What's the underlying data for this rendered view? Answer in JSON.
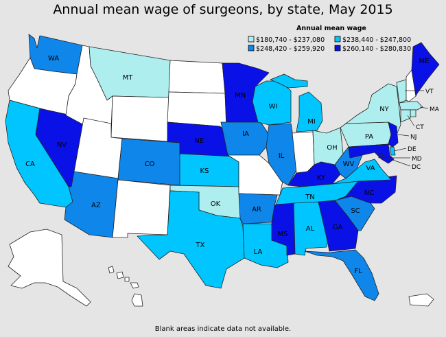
{
  "title": "Annual mean wage of surgeons, by state, May 2015",
  "footnote": "Blank areas indicate data not available.",
  "legend": {
    "title": "Annual mean wage",
    "ranges": [
      {
        "label": "$180,740 - $237,080",
        "color": "#aeeeee"
      },
      {
        "label": "$238,440 - $247,800",
        "color": "#00c5ff"
      },
      {
        "label": "$248,420 - $259,920",
        "color": "#0f86ea"
      },
      {
        "label": "$260,140 - $280,830",
        "color": "#0a11e6"
      }
    ]
  },
  "colors": {
    "nodata": "#ffffff",
    "background": "#e5e5e5"
  },
  "states": {
    "WA": {
      "label": "WA",
      "bin": 2
    },
    "OR": {
      "label": "",
      "bin": -1
    },
    "CA": {
      "label": "CA",
      "bin": 1
    },
    "NV": {
      "label": "NV",
      "bin": 3
    },
    "ID": {
      "label": "",
      "bin": -1
    },
    "MT": {
      "label": "MT",
      "bin": 0
    },
    "WY": {
      "label": "",
      "bin": -1
    },
    "UT": {
      "label": "",
      "bin": -1
    },
    "AZ": {
      "label": "AZ",
      "bin": 2
    },
    "CO": {
      "label": "CO",
      "bin": 2
    },
    "NM": {
      "label": "",
      "bin": -1
    },
    "ND": {
      "label": "",
      "bin": -1
    },
    "SD": {
      "label": "",
      "bin": -1
    },
    "NE": {
      "label": "NE",
      "bin": 3
    },
    "KS": {
      "label": "KS",
      "bin": 1
    },
    "OK": {
      "label": "OK",
      "bin": 0
    },
    "TX": {
      "label": "TX",
      "bin": 1
    },
    "MN": {
      "label": "MN",
      "bin": 3
    },
    "IA": {
      "label": "IA",
      "bin": 2
    },
    "MO": {
      "label": "",
      "bin": -1
    },
    "AR": {
      "label": "AR",
      "bin": 2
    },
    "LA": {
      "label": "LA",
      "bin": 1
    },
    "WI": {
      "label": "WI",
      "bin": 1
    },
    "IL": {
      "label": "IL",
      "bin": 2
    },
    "MI": {
      "label": "MI",
      "bin": 1
    },
    "IN": {
      "label": "",
      "bin": -1
    },
    "OH": {
      "label": "OH",
      "bin": 0
    },
    "KY": {
      "label": "KY",
      "bin": 3
    },
    "TN": {
      "label": "TN",
      "bin": 1
    },
    "MS": {
      "label": "MS",
      "bin": 3
    },
    "AL": {
      "label": "AL",
      "bin": 1
    },
    "GA": {
      "label": "GA",
      "bin": 3
    },
    "FL": {
      "label": "FL",
      "bin": 2
    },
    "SC": {
      "label": "SC",
      "bin": 2
    },
    "NC": {
      "label": "NC",
      "bin": 3
    },
    "VA": {
      "label": "VA",
      "bin": 1
    },
    "WV": {
      "label": "WV",
      "bin": 2
    },
    "PA": {
      "label": "PA",
      "bin": 0
    },
    "NY": {
      "label": "NY",
      "bin": 0
    },
    "VT": {
      "label": "VT",
      "bin": 0
    },
    "NH": {
      "label": "",
      "bin": -1
    },
    "ME": {
      "label": "ME",
      "bin": 3
    },
    "MA": {
      "label": "MA",
      "bin": 0
    },
    "RI": {
      "label": "",
      "bin": 0
    },
    "CT": {
      "label": "CT",
      "bin": 0
    },
    "NJ": {
      "label": "NJ",
      "bin": 3
    },
    "DE": {
      "label": "DE",
      "bin": 1
    },
    "MD": {
      "label": "MD",
      "bin": 3
    },
    "DC": {
      "label": "DC",
      "bin": 3
    },
    "AK": {
      "label": "",
      "bin": -1
    },
    "HI": {
      "label": "",
      "bin": -1
    },
    "PR": {
      "label": "",
      "bin": -1
    }
  }
}
